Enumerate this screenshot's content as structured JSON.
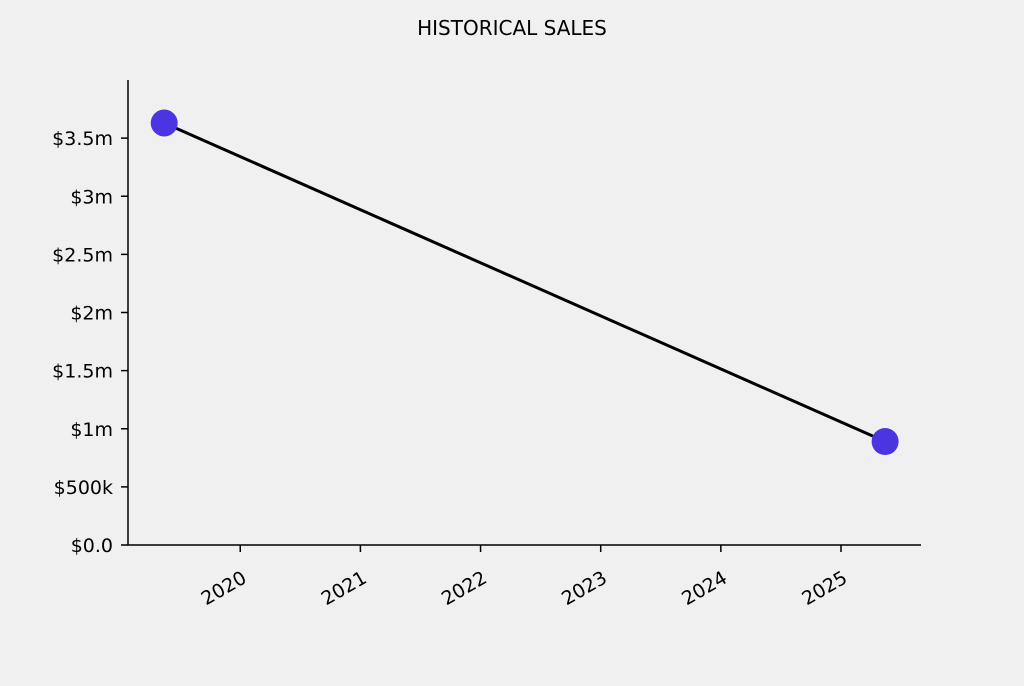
{
  "chart_data": {
    "type": "line",
    "title": "HISTORICAL SALES",
    "xlabel": "",
    "ylabel": "",
    "x": [
      "2019-05-15",
      "2025-05-15"
    ],
    "series": [
      {
        "values": [
          3630000,
          890000
        ],
        "line_color": "#000000",
        "marker_color": "#4a35e0"
      }
    ],
    "xlim": [
      "2019-01-25",
      "2025-09-01"
    ],
    "ylim": [
      0,
      4000000
    ],
    "x_ticks": [
      {
        "value": 2020,
        "label": "2020"
      },
      {
        "value": 2021,
        "label": "2021"
      },
      {
        "value": 2022,
        "label": "2022"
      },
      {
        "value": 2023,
        "label": "2023"
      },
      {
        "value": 2024,
        "label": "2024"
      },
      {
        "value": 2025,
        "label": "2025"
      }
    ],
    "y_ticks": [
      {
        "value": 0,
        "label": "$0.0"
      },
      {
        "value": 500000,
        "label": "$500k"
      },
      {
        "value": 1000000,
        "label": "$1m"
      },
      {
        "value": 1500000,
        "label": "$1.5m"
      },
      {
        "value": 2000000,
        "label": "$2m"
      },
      {
        "value": 2500000,
        "label": "$2.5m"
      },
      {
        "value": 3000000,
        "label": "$3m"
      },
      {
        "value": 3500000,
        "label": "$3.5m"
      }
    ],
    "grid": false,
    "background_color": "#f0f0f0"
  }
}
